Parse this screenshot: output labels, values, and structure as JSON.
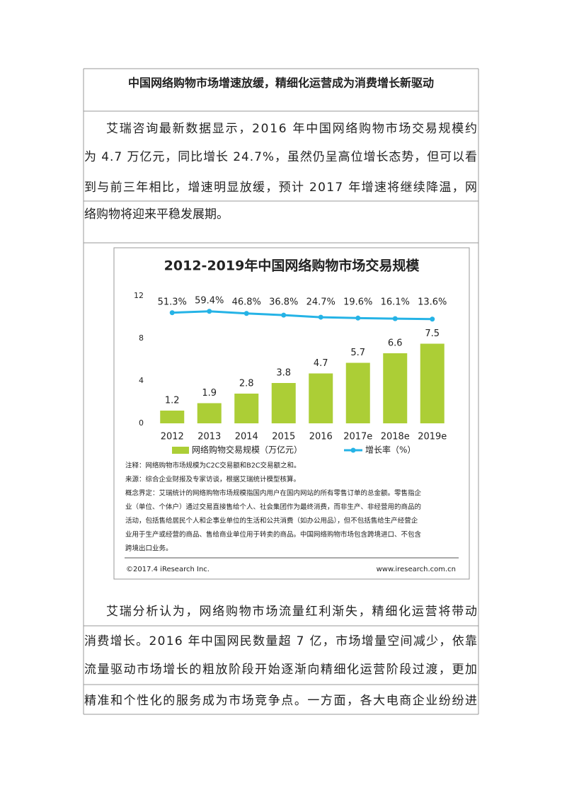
{
  "heading": "中国网络购物市场增速放缓，精细化运营成为消费增长新驱动",
  "paragraphs": [
    [
      "艾瑞咨询最新数据显示，2016 年中国网络购物市场交易规模约",
      "为 4.7 万亿元，同比增长 24.7%，虽然仍呈高位增长态势，但可以看",
      "到与前三年相比，增速明显放缓，预计 2017 年增速将继续降温，网",
      "络购物将迎来平稳发展期。"
    ],
    [
      "艾瑞分析认为，网络购物市场流量红利渐失，精细化运营将带动",
      "消费增长。2016 年中国网民数量超 7 亿，市场增量空间减少，依靠",
      "流量驱动市场增长的粗放阶段开始逐渐向精细化运营阶段过渡，更加",
      "精准和个性化的服务成为市场竞争点。一方面，各大电商企业纷纷进"
    ]
  ],
  "chart_data": {
    "type": "bar",
    "title": "2012-2019年中国网络购物市场交易规模",
    "categories": [
      "2012",
      "2013",
      "2014",
      "2015",
      "2016",
      "2017e",
      "2018e",
      "2019e"
    ],
    "series": [
      {
        "name": "网络购物交易规模（万亿元）",
        "color": "#acce36",
        "values": [
          1.2,
          1.9,
          2.8,
          3.8,
          4.7,
          5.7,
          6.6,
          7.5
        ]
      },
      {
        "name": "增长率（%）",
        "color": "#25b3e6",
        "type": "line",
        "axis": "y2",
        "values": [
          51.3,
          59.4,
          46.8,
          36.8,
          24.7,
          19.6,
          16.1,
          13.6
        ],
        "value_labels": [
          "51.3%",
          "59.4%",
          "46.8%",
          "36.8%",
          "24.7%",
          "19.6%",
          "16.1%",
          "13.6%"
        ]
      }
    ],
    "ylim": [
      0,
      12
    ],
    "yticks": [
      0,
      4,
      8,
      12
    ],
    "y2lim": [
      -600,
      150
    ],
    "legend": "bottom"
  },
  "notes": [
    "注释：网络购物市场规模为C2C交易额和B2C交易额之和。",
    "来源：综合企业财报及专家访谈，根据艾瑞统计模型核算。",
    "概念界定：艾瑞统计的网络购物市场规模指国内用户在国内网站的所有零售订单的总金额。零售指企",
    "业（单位、个体户）通过交易直接售给个人、社会集团作为最终消费，而非生产、非经营用的商品的",
    "活动，包括售给居民个人和企事业单位的生活和公共消费（如办公用品），但不包括售给生产经营企",
    "业用于生产或经营的商品、售给商业单位用于转卖的商品。中国网络购物市场包含跨境进口、不包含",
    "跨境出口业务。"
  ],
  "footer": {
    "copyright": "©2017.4 iResearch Inc.",
    "website": "www.iresearch.com.cn"
  }
}
